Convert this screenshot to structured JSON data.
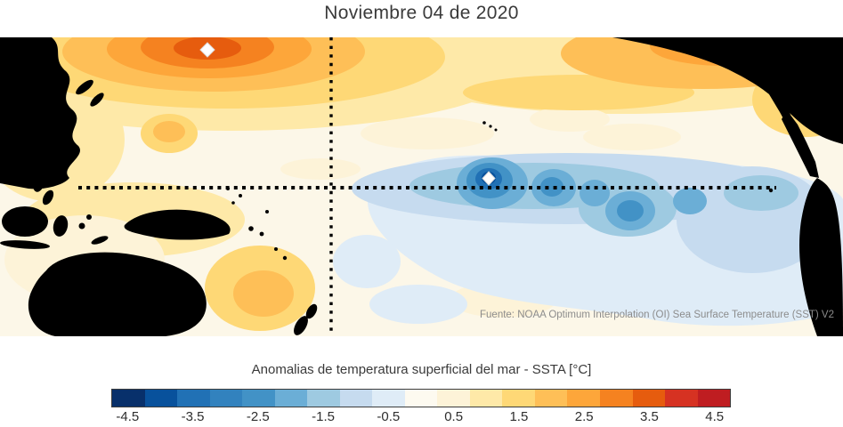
{
  "title": "Noviembre 04 de 2020",
  "map": {
    "source": "Fuente: NOAA Optimum Interpolation (OI) Sea Surface Temperature (SST) V2",
    "markers": [
      "north-pacific-diamond-marker",
      "equatorial-diamond-marker"
    ],
    "reference_lines": [
      "equator-dotted-line",
      "dateline-dotted-line"
    ]
  },
  "legend": {
    "label": "Anomalias de temperatura superficial del mar - SSTA  [°C]"
  },
  "colorbar": {
    "ticks": [
      "-4.5",
      "-3.5",
      "-2.5",
      "-1.5",
      "-0.5",
      "0.5",
      "1.5",
      "2.5",
      "3.5",
      "4.5"
    ],
    "range": [
      -4.75,
      4.75
    ],
    "step": 0.5,
    "colors": [
      "#08306b",
      "#08519c",
      "#2171b5",
      "#3282be",
      "#4292c6",
      "#6baed6",
      "#9ecae1",
      "#c6dbef",
      "#dfecf7",
      "#fdfaf0",
      "#fdf3d8",
      "#fee9a8",
      "#fed876",
      "#febf57",
      "#fda63a",
      "#f58220",
      "#e65c0e",
      "#d63222",
      "#bf1d21"
    ]
  },
  "colors": {
    "land": "#000000",
    "ocean_neutral": "#fcf7e8",
    "background": "#ffffff"
  },
  "chart_data": {
    "type": "heatmap",
    "title": "Noviembre 04 de 2020",
    "variable": "Sea surface temperature anomaly (SSTA)",
    "units": "°C",
    "legend_label": "Anomalias de temperatura superficial del mar - SSTA [°C]",
    "colorbar_ticks": [
      -4.5,
      -3.5,
      -2.5,
      -1.5,
      -0.5,
      0.5,
      1.5,
      2.5,
      3.5,
      4.5
    ],
    "colorbar_range": [
      -4.75,
      4.75
    ],
    "source": "Fuente: NOAA Optimum Interpolation (OI) Sea Surface Temperature (SST) V2",
    "reference_lines": [
      "equator (horizontal dotted line)",
      "date line (vertical dotted line)"
    ],
    "regions": [
      {
        "name": "Central/Northwest North Pacific",
        "approx_anomaly_c": 2.5,
        "sign": "warm"
      },
      {
        "name": "North Pacific core (diamond marker)",
        "approx_anomaly_c": 3.5,
        "sign": "warm"
      },
      {
        "name": "Central equatorial Pacific cold tongue (La Nina)",
        "approx_anomaly_c": -2.0,
        "sign": "cold"
      },
      {
        "name": "Equatorial core (diamond marker)",
        "approx_anomaly_c": -2.5,
        "sign": "cold"
      },
      {
        "name": "Southeast Pacific off South America",
        "approx_anomaly_c": -1.0,
        "sign": "cold"
      },
      {
        "name": "Coral Sea east of Australia",
        "approx_anomaly_c": 1.5,
        "sign": "warm"
      },
      {
        "name": "Northeast Pacific near Baja California",
        "approx_anomaly_c": 1.5,
        "sign": "warm"
      },
      {
        "name": "Western Pacific / maritime continent",
        "approx_anomaly_c": 1.0,
        "sign": "warm"
      }
    ]
  }
}
